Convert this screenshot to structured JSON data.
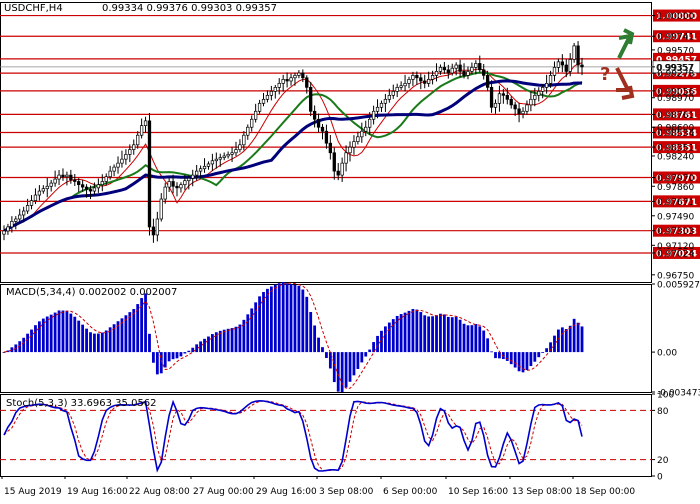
{
  "header": {
    "symbol_timeframe": "USDCHF,H4",
    "ohlc": "0.99334 0.99376 0.99303 0.99357"
  },
  "colors": {
    "candles": "#000000",
    "levels": "#cc0000",
    "ma_fast": "#cc0000",
    "ma_mid": "#1a7a1a",
    "ma_slow": "#00007a",
    "macd_hist": "#0000cc",
    "macd_signal": "#cc0000",
    "stoch_main": "#0000cc",
    "stoch_signal": "#cc0000",
    "arrow_up": "#2e7d32",
    "arrow_down": "#a0301e",
    "question": "#a0301e"
  },
  "icons": [
    "up-arrow-icon",
    "down-arrow-icon",
    "question-mark-icon"
  ],
  "chart_data": [
    {
      "type": "candlestick",
      "name": "price",
      "ylim": [
        0.9666,
        1.0017
      ],
      "price_ticks": [
        "1.00000",
        "0.99741",
        "0.99570",
        "0.99357",
        "0.99278",
        "0.99056",
        "0.98970",
        "0.98761",
        "0.98600",
        "0.98534",
        "0.98351",
        "0.98240",
        "0.97970",
        "0.97860",
        "0.97671",
        "0.97490",
        "0.97303",
        "0.97120",
        "0.97024",
        "0.96750"
      ],
      "levels": [
        1.0,
        0.99741,
        0.99457,
        0.99278,
        0.99056,
        0.98761,
        0.98534,
        0.98351,
        0.9797,
        0.97671,
        0.97303,
        0.97024
      ],
      "level_labels": [
        "1.00000",
        "0.99741",
        "0.99457",
        "0.99278",
        "0.99056",
        "0.98761",
        "0.98534",
        "0.98351",
        "0.97970",
        "0.97671",
        "0.97303",
        "0.97024"
      ],
      "current_price": 0.99357,
      "current_price_label": "0.99357",
      "current_price_tag": "0.99357",
      "x_labels": [
        "15 Aug 2019",
        "19 Aug 16:00",
        "22 Aug 08:00",
        "27 Aug 00:00",
        "29 Aug 16:00",
        "3 Sep 08:00",
        "6 Sep 00:00",
        "10 Sep 16:00",
        "13 Sep 08:00",
        "18 Sep 00:00"
      ],
      "candle_count": 148,
      "closes": [
        0.973,
        0.9735,
        0.9742,
        0.9745,
        0.975,
        0.9755,
        0.9762,
        0.9768,
        0.9775,
        0.978,
        0.9783,
        0.9786,
        0.979,
        0.9795,
        0.98,
        0.9798,
        0.98,
        0.9794,
        0.9792,
        0.9788,
        0.9785,
        0.9782,
        0.978,
        0.9784,
        0.9788,
        0.9792,
        0.9798,
        0.9805,
        0.981,
        0.9815,
        0.982,
        0.9826,
        0.9832,
        0.9838,
        0.985,
        0.9862,
        0.9868,
        0.9735,
        0.9725,
        0.9745,
        0.977,
        0.9785,
        0.9792,
        0.9786,
        0.9784,
        0.9788,
        0.9793,
        0.9796,
        0.98,
        0.9805,
        0.9808,
        0.9811,
        0.9814,
        0.9818,
        0.982,
        0.9822,
        0.9824,
        0.9826,
        0.9828,
        0.9832,
        0.9838,
        0.985,
        0.986,
        0.987,
        0.988,
        0.989,
        0.9895,
        0.99,
        0.9905,
        0.991,
        0.9915,
        0.992,
        0.9918,
        0.9922,
        0.9925,
        0.9928,
        0.9922,
        0.991,
        0.988,
        0.987,
        0.986,
        0.9855,
        0.984,
        0.9828,
        0.9805,
        0.98,
        0.9815,
        0.9828,
        0.9835,
        0.9842,
        0.9848,
        0.9855,
        0.986,
        0.987,
        0.988,
        0.9885,
        0.989,
        0.9895,
        0.99,
        0.9905,
        0.991,
        0.9912,
        0.9915,
        0.992,
        0.9925,
        0.9922,
        0.9918,
        0.9915,
        0.992,
        0.9925,
        0.993,
        0.9935,
        0.9932,
        0.9928,
        0.9934,
        0.9938,
        0.993,
        0.9925,
        0.993,
        0.9935,
        0.994,
        0.9932,
        0.9925,
        0.991,
        0.9885,
        0.989,
        0.9902,
        0.99,
        0.9895,
        0.9888,
        0.9883,
        0.9877,
        0.988,
        0.9888,
        0.9895,
        0.99,
        0.9905,
        0.991,
        0.9915,
        0.9925,
        0.9935,
        0.9942,
        0.9938,
        0.993,
        0.9945,
        0.9962,
        0.9938,
        0.99357
      ]
    },
    {
      "type": "bar",
      "name": "MACD(5,34,4)",
      "label": "MACD(5,34,4) 0.002002 0.002007",
      "ylim": [
        -0.003473,
        0.005927
      ],
      "ticks": [
        "0.005927",
        "0.00",
        "-0.003473"
      ]
    },
    {
      "type": "line",
      "name": "Stoch(5,3,3)",
      "label": "Stoch(5,3,3) 33.6963 35.0562",
      "ylim": [
        0,
        100
      ],
      "ticks": [
        "100",
        "80",
        "20",
        "0"
      ],
      "levels": [
        80,
        20
      ]
    }
  ]
}
